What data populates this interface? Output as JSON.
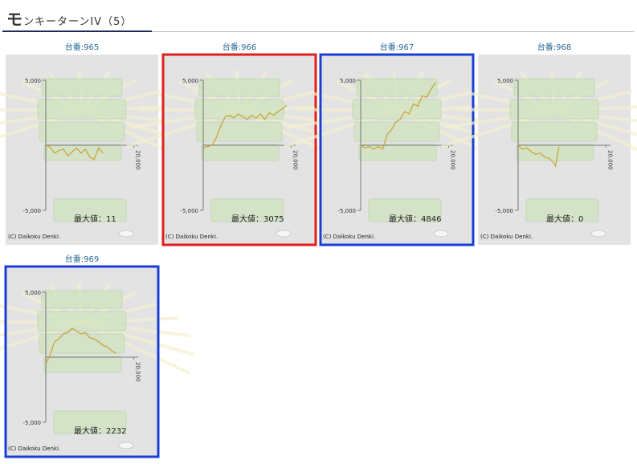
{
  "header": {
    "title": "モンキーターンIV（5）"
  },
  "machines": [
    {
      "label": "台番:965",
      "max_label": "最大値：",
      "max_value": 11,
      "copyright": "(C) Daikoku Denki.",
      "chart": {
        "type": "line",
        "color": "#c9a12e",
        "x": [
          0,
          1000,
          2000,
          3000,
          4000,
          5000,
          6000,
          7000,
          8000,
          9000,
          10000,
          11000,
          12000,
          13000
        ],
        "values": [
          0,
          -150,
          -600,
          -400,
          -300,
          -800,
          -500,
          -200,
          -600,
          -300,
          -900,
          -1100,
          -200,
          -600
        ],
        "xlim": [
          0,
          21000
        ],
        "xticks": [
          {
            "value": 20000,
            "label": "20,000"
          }
        ],
        "ylim": [
          -5000,
          5000
        ],
        "yticks": [
          {
            "value": 5000,
            "label": "5,000"
          },
          {
            "value": -5000,
            "label": "-5,000"
          }
        ]
      }
    },
    {
      "label": "台番:966",
      "max_label": "最大値：",
      "max_value": 3075,
      "copyright": "(C) Daikoku Denki.",
      "border_color": "#e01e1e",
      "chart": {
        "type": "line",
        "color": "#c9a12e",
        "x": [
          0,
          1000,
          2000,
          3000,
          4000,
          5000,
          6000,
          7000,
          8000,
          9000,
          10000,
          11000,
          12000,
          13000,
          14000,
          15000,
          16000,
          17000,
          18000,
          19000
        ],
        "values": [
          -200,
          -100,
          0,
          600,
          1500,
          2200,
          2300,
          2100,
          2400,
          2200,
          2000,
          2300,
          2100,
          2400,
          2000,
          2500,
          2300,
          2600,
          2800,
          3075
        ],
        "xlim": [
          0,
          21000
        ],
        "xticks": [
          {
            "value": 20000,
            "label": "20,000"
          }
        ],
        "ylim": [
          -5000,
          5000
        ],
        "yticks": [
          {
            "value": 5000,
            "label": "5,000"
          },
          {
            "value": -5000,
            "label": "-5,000"
          }
        ]
      }
    },
    {
      "label": "台番:967",
      "max_label": "最大値：",
      "max_value": 4846,
      "copyright": "(C) Daikoku Denki.",
      "border_color": "#1a3fd6",
      "chart": {
        "type": "line",
        "color": "#c9a12e",
        "x": [
          0,
          1000,
          2000,
          3000,
          4000,
          5000,
          6000,
          7000,
          8000,
          9000,
          10000,
          11000,
          12000,
          13000,
          14000,
          15000,
          16000,
          17000
        ],
        "values": [
          0,
          -200,
          -100,
          -300,
          -100,
          -300,
          800,
          1200,
          1800,
          2000,
          2600,
          2400,
          3200,
          3000,
          3800,
          3700,
          4300,
          4846
        ],
        "xlim": [
          0,
          21000
        ],
        "xticks": [
          {
            "value": 20000,
            "label": "20,000"
          }
        ],
        "ylim": [
          -5000,
          5000
        ],
        "yticks": [
          {
            "value": 5000,
            "label": "5,000"
          },
          {
            "value": -5000,
            "label": "-5,000"
          }
        ]
      }
    },
    {
      "label": "台番:968",
      "max_label": "最大値：",
      "max_value": 0,
      "copyright": "(C) Daikoku Denki.",
      "chart": {
        "type": "line",
        "color": "#c9a12e",
        "x": [
          0,
          1000,
          2000,
          3000,
          4000,
          5000,
          6000,
          7000,
          8000,
          8500,
          9300
        ],
        "values": [
          0,
          -300,
          -200,
          -500,
          -700,
          -600,
          -900,
          -1000,
          -1300,
          -1600,
          -100
        ],
        "xlim": [
          0,
          21000
        ],
        "xticks": [
          {
            "value": 20000,
            "label": "20,000"
          }
        ],
        "ylim": [
          -5000,
          5000
        ],
        "yticks": [
          {
            "value": 5000,
            "label": "5,000"
          },
          {
            "value": -5000,
            "label": "-5,000"
          }
        ]
      }
    },
    {
      "label": "台番:969",
      "max_label": "最大値：",
      "max_value": 2232,
      "copyright": "(C) Daikoku Denki.",
      "border_color": "#1a3fd6",
      "chart": {
        "type": "line",
        "color": "#c9a12e",
        "x": [
          0,
          1000,
          2000,
          3000,
          4000,
          5000,
          6000,
          7000,
          8000,
          9000,
          10000,
          11000,
          12000,
          13000,
          14000,
          15000,
          16000
        ],
        "values": [
          -500,
          200,
          1200,
          1400,
          1800,
          1900,
          2232,
          2000,
          1800,
          1900,
          1500,
          1400,
          1200,
          900,
          800,
          500,
          300
        ],
        "xlim": [
          0,
          21000
        ],
        "xticks": [
          {
            "value": 20000,
            "label": "20,000"
          }
        ],
        "ylim": [
          -5000,
          5000
        ],
        "yticks": [
          {
            "value": 5000,
            "label": "5,000"
          },
          {
            "value": -5000,
            "label": "-5,000"
          }
        ]
      }
    }
  ]
}
